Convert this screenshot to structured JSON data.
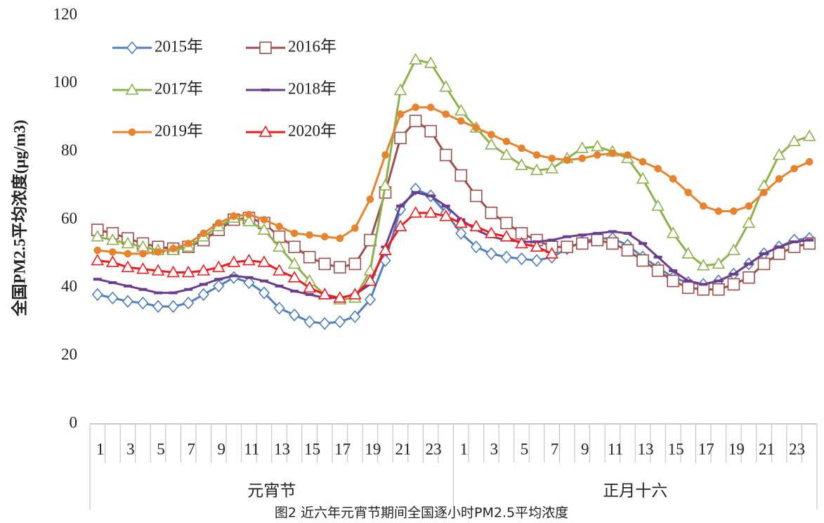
{
  "chart_data": {
    "type": "line",
    "ylabel": "全国PM2.5平均浓度(μg/m3)",
    "caption": "图2 近六年元宵节期间全国逐小时PM2.5平均浓度",
    "categories": [
      "1",
      null,
      "3",
      null,
      "5",
      null,
      "7",
      null,
      "9",
      null,
      "11",
      null,
      "13",
      null,
      "15",
      null,
      "17",
      null,
      "19",
      null,
      "21",
      null,
      "23",
      null,
      "1",
      null,
      "3",
      null,
      "5",
      null,
      "7",
      null,
      "9",
      null,
      "11",
      null,
      "13",
      null,
      "15",
      null,
      "17",
      null,
      "19",
      null,
      "21",
      null,
      "23",
      null
    ],
    "x_groups": [
      "元宵节",
      "正月十六"
    ],
    "ylim": [
      0,
      120
    ],
    "yticks": [
      0,
      20,
      40,
      60,
      80,
      100,
      120
    ],
    "legend": "upper left",
    "series": [
      {
        "name": "2015年",
        "color": "#4f7fbf",
        "marker": "diamond",
        "values": [
          38,
          37,
          36,
          35.5,
          34.5,
          34.5,
          35.5,
          38,
          40.5,
          43,
          41.5,
          38.5,
          34,
          32,
          30,
          29.5,
          30,
          31.5,
          36.5,
          48,
          63,
          69,
          67,
          62,
          56,
          52,
          50,
          49,
          48.5,
          48,
          49,
          51.5,
          53.5,
          54.5,
          54.5,
          52.5,
          49,
          46,
          43,
          41.5,
          41,
          42,
          44,
          47,
          50,
          52,
          54,
          54.5
        ]
      },
      {
        "name": "2016年",
        "color": "#a04e4c",
        "marker": "square",
        "values": [
          57,
          56,
          54.5,
          53,
          52,
          51.5,
          52,
          54,
          57,
          60,
          60.5,
          59,
          55,
          52,
          49,
          47,
          46,
          47,
          54,
          68,
          84,
          89,
          86,
          79,
          73,
          67,
          62,
          59,
          56,
          54,
          52,
          52,
          53,
          54,
          53,
          51,
          48,
          45,
          42,
          40,
          39.5,
          39.5,
          41,
          43,
          47,
          50,
          52,
          53
        ]
      },
      {
        "name": "2017年",
        "color": "#8db24c",
        "marker": "triangle",
        "values": [
          55,
          54,
          53,
          52,
          51,
          51,
          52,
          55,
          58,
          60.5,
          59.5,
          57,
          52,
          47,
          42,
          38,
          36.5,
          37,
          45,
          70,
          98,
          107,
          106,
          99,
          92,
          87,
          82,
          79,
          76,
          74.5,
          75,
          78,
          81,
          81.5,
          80,
          78,
          72,
          64,
          56,
          50,
          46.5,
          47,
          51,
          59,
          70,
          79,
          83,
          84.5
        ]
      },
      {
        "name": "2018年",
        "color": "#6a3d8f",
        "marker": "dash",
        "values": [
          42.5,
          41.5,
          40.5,
          39.5,
          38.5,
          38.5,
          39.5,
          41,
          42.5,
          43.5,
          43,
          42,
          40.5,
          39,
          38,
          37,
          37,
          38,
          41,
          52,
          64,
          68,
          67,
          64,
          60,
          57,
          55,
          54,
          53.5,
          53.5,
          54,
          55,
          55.5,
          56,
          56.5,
          56,
          53,
          49,
          45,
          42,
          41,
          42,
          44,
          47,
          50,
          52,
          53.5,
          54
        ]
      },
      {
        "name": "2019年",
        "color": "#e8822c",
        "marker": "circle",
        "values": [
          51,
          50.5,
          50,
          50,
          50.5,
          51.5,
          53,
          56,
          59,
          61,
          61.5,
          60,
          58,
          56,
          55.5,
          55,
          54.5,
          57.5,
          66,
          79,
          91,
          93,
          93,
          91,
          89,
          87,
          85,
          83,
          81,
          79,
          78,
          77.5,
          78,
          79,
          79.5,
          79,
          77,
          75,
          72,
          68,
          64,
          62.5,
          62.5,
          64,
          68,
          72,
          75,
          77
        ]
      },
      {
        "name": "2020年",
        "color": "#ee1c1c",
        "marker": "triangle",
        "values": [
          48,
          47.5,
          46,
          45.5,
          45,
          44.5,
          44.5,
          45,
          46,
          47.5,
          48,
          47.5,
          45,
          43,
          40,
          38,
          37,
          38,
          42,
          51,
          58,
          62,
          62,
          61,
          59,
          58,
          56,
          55,
          53,
          52,
          50,
          null,
          null,
          null,
          null,
          null,
          null,
          null,
          null,
          null,
          null,
          null,
          null,
          null,
          null,
          null,
          null,
          null
        ]
      }
    ]
  }
}
